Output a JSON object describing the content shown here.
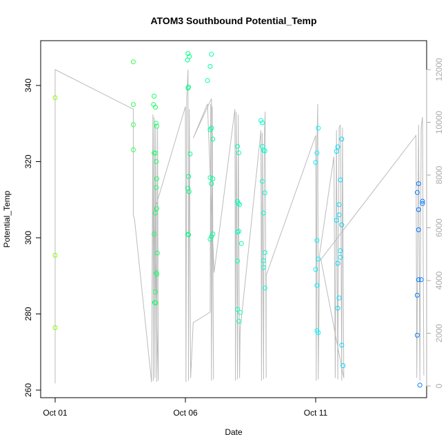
{
  "chart_data": {
    "type": "scatter",
    "title": "ATOM3 Southbound Potential_Temp",
    "xlabel": "Date",
    "ylabel": "Potential_Temp",
    "x_ticks": [
      {
        "label": "Oct 01",
        "day": 1
      },
      {
        "label": "Oct 06",
        "day": 6
      },
      {
        "label": "Oct 11",
        "day": 11
      }
    ],
    "xlim": [
      1,
      15.6
    ],
    "ylim": [
      260,
      350
    ],
    "y_ticks": [
      260,
      280,
      300,
      320,
      340
    ],
    "right_axis": {
      "color": "#aaaaaa",
      "ylim": [
        0,
        12000
      ],
      "ticks": [
        0,
        2000,
        4000,
        6000,
        8000,
        10000,
        12000
      ]
    },
    "grid": false,
    "point_color_gradient": [
      "#7fff00",
      "#00ff7f",
      "#00ffff",
      "#0066ff"
    ],
    "points": [
      {
        "x": 1.0,
        "y": 336.8
      },
      {
        "x": 1.0,
        "y": 295.4
      },
      {
        "x": 1.0,
        "y": 276.4
      },
      {
        "x": 4.0,
        "y": 346.2
      },
      {
        "x": 4.0,
        "y": 335.0
      },
      {
        "x": 4.0,
        "y": 329.7
      },
      {
        "x": 4.0,
        "y": 323.1
      },
      {
        "x": 4.8,
        "y": 337.2
      },
      {
        "x": 4.78,
        "y": 335.0
      },
      {
        "x": 4.85,
        "y": 334.3
      },
      {
        "x": 4.87,
        "y": 330.1
      },
      {
        "x": 4.9,
        "y": 329.3
      },
      {
        "x": 4.8,
        "y": 322.3
      },
      {
        "x": 4.85,
        "y": 322.2
      },
      {
        "x": 4.88,
        "y": 320.0
      },
      {
        "x": 4.9,
        "y": 315.5
      },
      {
        "x": 4.88,
        "y": 313.2
      },
      {
        "x": 4.9,
        "y": 307.7
      },
      {
        "x": 4.85,
        "y": 306.5
      },
      {
        "x": 4.8,
        "y": 301.0
      },
      {
        "x": 4.92,
        "y": 296.0
      },
      {
        "x": 4.88,
        "y": 290.8
      },
      {
        "x": 4.9,
        "y": 290.4
      },
      {
        "x": 4.85,
        "y": 285.8
      },
      {
        "x": 4.82,
        "y": 283.0
      },
      {
        "x": 4.86,
        "y": 282.9
      },
      {
        "x": 6.1,
        "y": 348.4
      },
      {
        "x": 6.15,
        "y": 347.6
      },
      {
        "x": 6.08,
        "y": 346.7
      },
      {
        "x": 6.12,
        "y": 339.6
      },
      {
        "x": 6.1,
        "y": 339.3
      },
      {
        "x": 6.18,
        "y": 322.0
      },
      {
        "x": 6.12,
        "y": 316.1
      },
      {
        "x": 6.1,
        "y": 313.0
      },
      {
        "x": 6.14,
        "y": 312.1
      },
      {
        "x": 6.1,
        "y": 300.9
      },
      {
        "x": 6.12,
        "y": 300.8
      },
      {
        "x": 7.0,
        "y": 348.2
      },
      {
        "x": 6.95,
        "y": 345.0
      },
      {
        "x": 6.85,
        "y": 341.3
      },
      {
        "x": 7.0,
        "y": 328.8
      },
      {
        "x": 6.95,
        "y": 328.4
      },
      {
        "x": 7.05,
        "y": 325.9
      },
      {
        "x": 6.95,
        "y": 315.8
      },
      {
        "x": 7.05,
        "y": 315.5
      },
      {
        "x": 7.0,
        "y": 314.2
      },
      {
        "x": 7.05,
        "y": 301.0
      },
      {
        "x": 7.0,
        "y": 300.3
      },
      {
        "x": 6.95,
        "y": 299.6
      },
      {
        "x": 8.0,
        "y": 324.0
      },
      {
        "x": 8.05,
        "y": 322.3
      },
      {
        "x": 8.0,
        "y": 309.5
      },
      {
        "x": 8.03,
        "y": 309.0
      },
      {
        "x": 8.08,
        "y": 308.7
      },
      {
        "x": 8.05,
        "y": 301.7
      },
      {
        "x": 8.0,
        "y": 301.5
      },
      {
        "x": 8.15,
        "y": 298.5
      },
      {
        "x": 8.0,
        "y": 293.9
      },
      {
        "x": 8.0,
        "y": 281.2
      },
      {
        "x": 8.1,
        "y": 280.4
      },
      {
        "x": 8.05,
        "y": 278.1
      },
      {
        "x": 8.9,
        "y": 330.8
      },
      {
        "x": 8.95,
        "y": 330.2
      },
      {
        "x": 8.95,
        "y": 324.0
      },
      {
        "x": 9.0,
        "y": 323.0
      },
      {
        "x": 9.05,
        "y": 322.8
      },
      {
        "x": 8.95,
        "y": 314.8
      },
      {
        "x": 9.05,
        "y": 311.8
      },
      {
        "x": 9.0,
        "y": 306.5
      },
      {
        "x": 9.05,
        "y": 296.1
      },
      {
        "x": 9.0,
        "y": 294.0
      },
      {
        "x": 9.0,
        "y": 292.2
      },
      {
        "x": 9.05,
        "y": 286.8
      },
      {
        "x": 11.1,
        "y": 328.8
      },
      {
        "x": 11.05,
        "y": 322.3
      },
      {
        "x": 11.0,
        "y": 319.8
      },
      {
        "x": 11.05,
        "y": 299.3
      },
      {
        "x": 11.1,
        "y": 294.4
      },
      {
        "x": 11.0,
        "y": 291.7
      },
      {
        "x": 11.05,
        "y": 287.5
      },
      {
        "x": 11.05,
        "y": 275.6
      },
      {
        "x": 11.1,
        "y": 275.1
      },
      {
        "x": 11.85,
        "y": 323.9
      },
      {
        "x": 11.8,
        "y": 322.7
      },
      {
        "x": 12.0,
        "y": 325.9
      },
      {
        "x": 11.95,
        "y": 315.2
      },
      {
        "x": 11.9,
        "y": 308.7
      },
      {
        "x": 11.9,
        "y": 306.0
      },
      {
        "x": 11.8,
        "y": 304.6
      },
      {
        "x": 12.0,
        "y": 303.4
      },
      {
        "x": 11.95,
        "y": 296.6
      },
      {
        "x": 11.95,
        "y": 294.9
      },
      {
        "x": 11.85,
        "y": 293.3
      },
      {
        "x": 11.9,
        "y": 284.2
      },
      {
        "x": 11.85,
        "y": 281.5
      },
      {
        "x": 12.0,
        "y": 271.8
      },
      {
        "x": 12.05,
        "y": 266.4
      },
      {
        "x": 14.95,
        "y": 314.2
      },
      {
        "x": 14.9,
        "y": 311.9
      },
      {
        "x": 15.1,
        "y": 309.6
      },
      {
        "x": 15.1,
        "y": 309.0
      },
      {
        "x": 14.95,
        "y": 307.4
      },
      {
        "x": 14.95,
        "y": 302.1
      },
      {
        "x": 14.95,
        "y": 289.0
      },
      {
        "x": 15.05,
        "y": 289.0
      },
      {
        "x": 14.9,
        "y": 284.9
      },
      {
        "x": 14.9,
        "y": 274.4
      },
      {
        "x": 15.0,
        "y": 261.3
      }
    ],
    "line_series": {
      "color": "#bbbbbb",
      "axis": "right",
      "points": [
        [
          1.0,
          100
        ],
        [
          1.0,
          12000
        ],
        [
          4.0,
          10500
        ],
        [
          4.0,
          6500
        ],
        [
          4.05,
          6300
        ],
        [
          4.7,
          150
        ],
        [
          4.75,
          10300
        ],
        [
          4.77,
          200
        ],
        [
          4.8,
          10200
        ],
        [
          4.83,
          300
        ],
        [
          4.86,
          10000
        ],
        [
          4.9,
          150
        ],
        [
          4.93,
          9800
        ],
        [
          4.96,
          200
        ],
        [
          4.8,
          6600
        ],
        [
          6.0,
          10600
        ],
        [
          6.02,
          150
        ],
        [
          6.05,
          10900
        ],
        [
          6.1,
          12000
        ],
        [
          6.12,
          200
        ],
        [
          6.15,
          10500
        ],
        [
          6.2,
          300
        ],
        [
          6.3,
          2400
        ],
        [
          6.95,
          2800
        ],
        [
          6.97,
          10700
        ],
        [
          7.0,
          200
        ],
        [
          7.03,
          10600
        ],
        [
          7.08,
          250
        ],
        [
          7.0,
          10900
        ],
        [
          6.3,
          9400
        ],
        [
          6.85,
          10700
        ],
        [
          6.88,
          9800
        ],
        [
          7.1,
          4300
        ],
        [
          7.9,
          10500
        ],
        [
          7.92,
          200
        ],
        [
          7.95,
          10400
        ],
        [
          8.0,
          250
        ],
        [
          8.03,
          10300
        ],
        [
          8.08,
          300
        ],
        [
          8.1,
          2100
        ],
        [
          8.9,
          9700
        ],
        [
          8.92,
          200
        ],
        [
          8.95,
          9600
        ],
        [
          9.0,
          250
        ],
        [
          9.03,
          9500
        ],
        [
          9.06,
          10400
        ],
        [
          9.1,
          300
        ],
        [
          9.1,
          4200
        ],
        [
          11.0,
          9500
        ],
        [
          11.02,
          200
        ],
        [
          11.05,
          9300
        ],
        [
          11.08,
          10700
        ],
        [
          11.1,
          250
        ],
        [
          11.15,
          5000
        ],
        [
          11.7,
          8700
        ],
        [
          11.75,
          300
        ],
        [
          11.8,
          9700
        ],
        [
          11.85,
          250
        ],
        [
          11.9,
          9800
        ],
        [
          11.95,
          9900
        ],
        [
          12.0,
          200
        ],
        [
          12.03,
          9800
        ],
        [
          12.08,
          300
        ],
        [
          11.2,
          4800
        ],
        [
          14.85,
          9500
        ],
        [
          14.88,
          300
        ],
        [
          14.95,
          9900
        ],
        [
          15.0,
          200
        ],
        [
          15.05,
          9800
        ],
        [
          15.1,
          10200
        ],
        [
          15.15,
          400
        ]
      ]
    }
  }
}
